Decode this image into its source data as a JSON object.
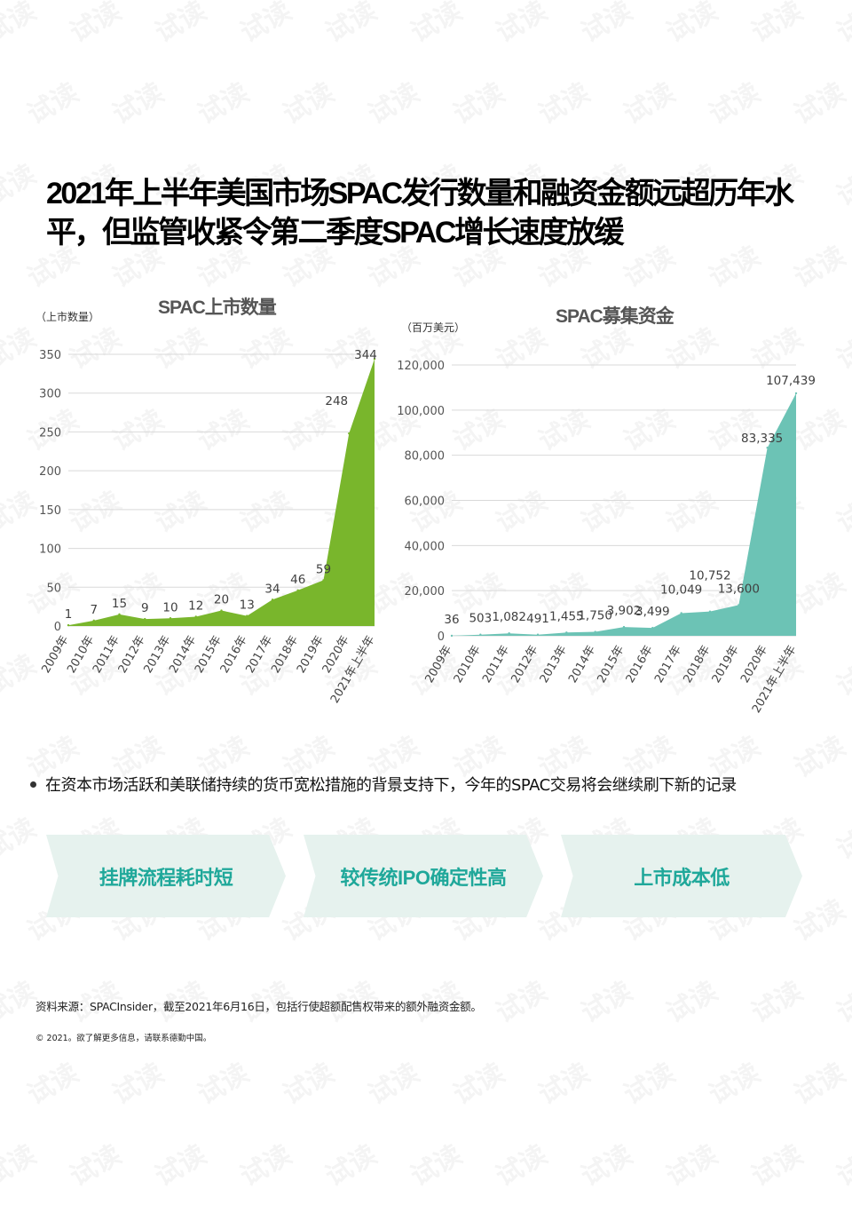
{
  "watermark": "试读",
  "title": "2021年上半年美国市场SPAC发行数量和融资金额远超历年水平，但监管收紧令第二季度SPAC增长速度放缓",
  "chart_data": [
    {
      "type": "area",
      "title": "SPAC上市数量",
      "unit_label": "（上市数量）",
      "categories": [
        "2009年",
        "2010年",
        "2011年",
        "2012年",
        "2013年",
        "2014年",
        "2015年",
        "2016年",
        "2017年",
        "2018年",
        "2019年",
        "2020年",
        "2021年上半年"
      ],
      "values": [
        1,
        7,
        15,
        9,
        10,
        12,
        20,
        13,
        34,
        46,
        59,
        248,
        344
      ],
      "value_labels": [
        "1",
        "7",
        "15",
        "9",
        "10",
        "12",
        "20",
        "13",
        "34",
        "46",
        "59",
        "248",
        "344"
      ],
      "yticks": [
        0,
        50,
        100,
        150,
        200,
        250,
        300,
        350
      ],
      "ytick_labels": [
        "0",
        "50",
        "100",
        "150",
        "200",
        "250",
        "300",
        "350"
      ],
      "ylim": [
        0,
        350
      ],
      "grid": true,
      "color": "#79b62c"
    },
    {
      "type": "area",
      "title": "SPAC募集资金",
      "unit_label": "（百万美元）",
      "categories": [
        "2009年",
        "2010年",
        "2011年",
        "2012年",
        "2013年",
        "2014年",
        "2015年",
        "2016年",
        "2017年",
        "2018年",
        "2019年",
        "2020年",
        "2021年上半年"
      ],
      "values": [
        36,
        503,
        1082,
        491,
        1455,
        1750,
        3902,
        3499,
        10049,
        10752,
        13600,
        83335,
        107439
      ],
      "value_labels": [
        "36",
        "503",
        "1,082",
        "491",
        "1,455",
        "1,750",
        "3,902",
        "3,499",
        "10,049",
        "10,752",
        "13,600",
        "83,335",
        "107,439"
      ],
      "yticks": [
        0,
        20000,
        40000,
        60000,
        80000,
        100000,
        120000
      ],
      "ytick_labels": [
        "0",
        "20,000",
        "40,000",
        "60,000",
        "80,000",
        "100,000",
        "120,000"
      ],
      "ylim": [
        0,
        120000
      ],
      "grid": true,
      "color": "#6cc3b5"
    }
  ],
  "bullet": "在资本市场活跃和美联储持续的货币宽松措施的背景支持下，今年的SPAC交易将会继续刷下新的记录",
  "arrows": [
    "挂牌流程耗时短",
    "较传统IPO确定性高",
    "上市成本低"
  ],
  "source": "资料来源：SPACInsider，截至2021年6月16日，包括行使超额配售权带来的额外融资金额。",
  "copyright": "© 2021。欲了解更多信息，请联系德勤中国。"
}
